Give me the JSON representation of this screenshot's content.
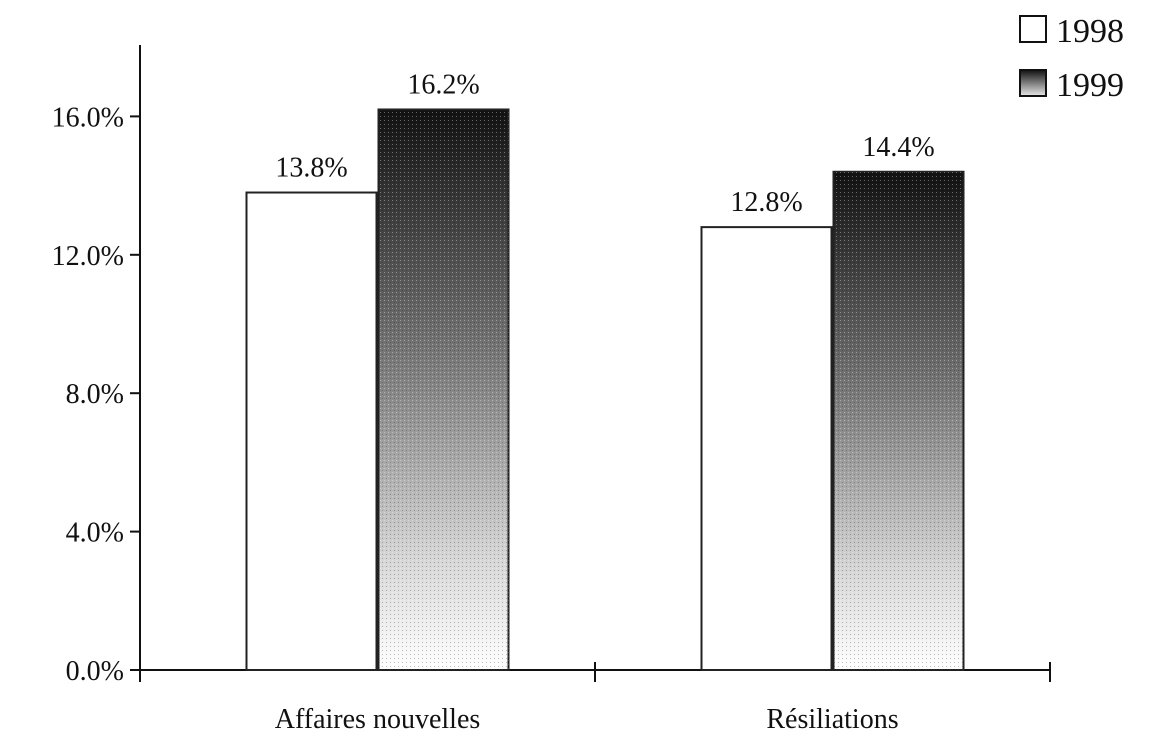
{
  "chart_data": {
    "type": "bar",
    "categories": [
      "Affaires nouvelles",
      "Résiliations"
    ],
    "series": [
      {
        "name": "1998",
        "values": [
          13.8,
          12.8
        ],
        "data_labels": [
          "13.8%",
          "12.8%"
        ],
        "fill": "#ffffff"
      },
      {
        "name": "1999",
        "values": [
          16.2,
          14.4
        ],
        "data_labels": [
          "16.2%",
          "14.4%"
        ],
        "fill": "gradient-dark-to-light"
      }
    ],
    "title": "",
    "xlabel": "",
    "ylabel": "",
    "ylim": [
      0,
      18
    ],
    "yticks": [
      0,
      4,
      8,
      12,
      16
    ],
    "ytick_labels": [
      "0.0%",
      "4.0%",
      "8.0%",
      "12.0%",
      "16.0%"
    ],
    "grid": false,
    "legend_position": "top-right",
    "colors": {
      "axis": "#111111",
      "bar_border": "#222222",
      "gradient_top": "#111111",
      "gradient_bottom": "#ffffff"
    }
  }
}
